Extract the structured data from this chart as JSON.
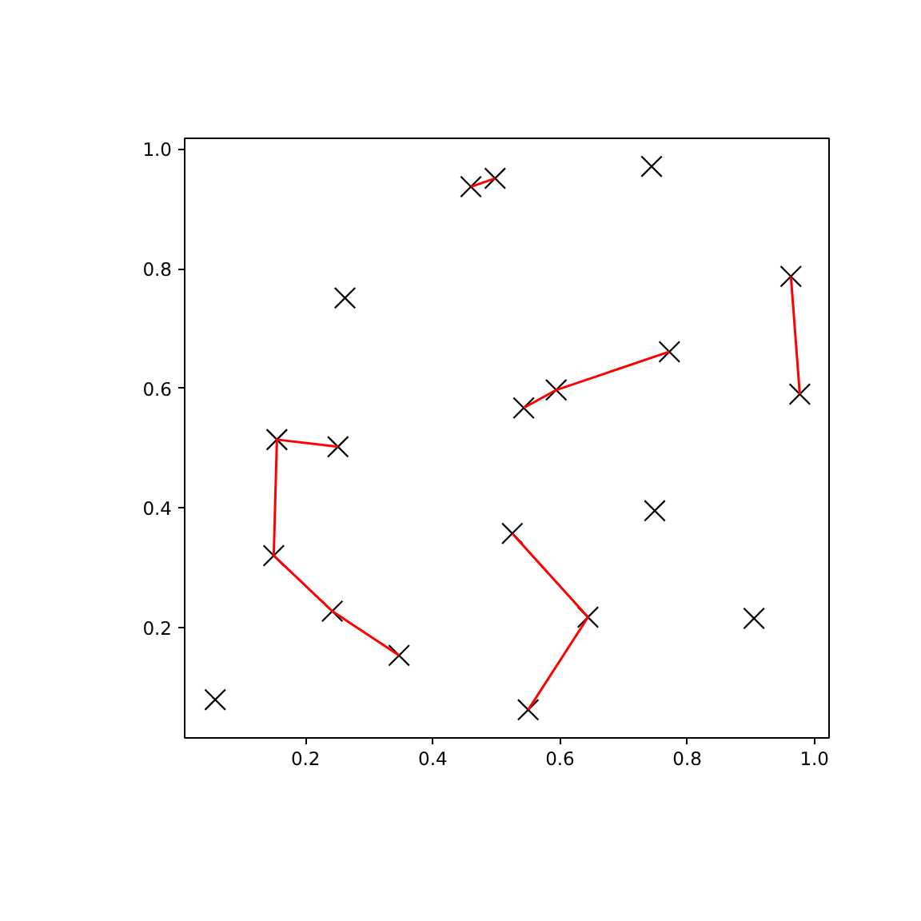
{
  "chart_data": {
    "type": "scatter",
    "grid": false,
    "xlim": [
      0.01,
      1.023
    ],
    "ylim": [
      0.015,
      1.018
    ],
    "xticks": [
      0.2,
      0.4,
      0.6,
      0.8,
      {
        "value": 1,
        "label": "1.0"
      }
    ],
    "yticks": [
      0.2,
      0.4,
      0.6,
      0.8,
      {
        "value": 1,
        "label": "1.0"
      }
    ],
    "series": [
      {
        "marker": "cross",
        "color": "#000000",
        "x": [
          0.46,
          0.498,
          0.262,
          0.155,
          0.251,
          0.744,
          0.963,
          0.977,
          0.772,
          0.594,
          0.543,
          0.15,
          0.242,
          0.347,
          0.058,
          0.525,
          0.644,
          0.55,
          0.749,
          0.905
        ],
        "values": [
          0.937,
          0.951,
          0.751,
          0.514,
          0.502,
          0.971,
          0.787,
          0.59,
          0.661,
          0.597,
          0.567,
          0.32,
          0.227,
          0.153,
          0.079,
          0.357,
          0.217,
          0.062,
          0.395,
          0.215
        ]
      },
      {
        "type": "line",
        "marker": "none",
        "line_style": "solid",
        "color": "#ff0000",
        "x": [
          0.46,
          0.498
        ],
        "values": [
          0.937,
          0.951
        ]
      },
      {
        "type": "line",
        "marker": "none",
        "line_style": "solid",
        "color": "#ff0000",
        "x": [
          0.963,
          0.977
        ],
        "values": [
          0.787,
          0.59
        ]
      },
      {
        "type": "line",
        "marker": "none",
        "line_style": "solid",
        "color": "#ff0000",
        "x": [
          0.543,
          0.594,
          0.772
        ],
        "values": [
          0.567,
          0.597,
          0.661
        ]
      },
      {
        "type": "line",
        "marker": "none",
        "line_style": "solid",
        "color": "#ff0000",
        "x": [
          0.251,
          0.155,
          0.15,
          0.242,
          0.347
        ],
        "values": [
          0.502,
          0.514,
          0.32,
          0.227,
          0.153
        ]
      },
      {
        "type": "line",
        "marker": "none",
        "line_style": "solid",
        "color": "#ff0000",
        "x": [
          0.525,
          0.644,
          0.55
        ],
        "values": [
          0.357,
          0.217,
          0.062
        ]
      }
    ]
  }
}
